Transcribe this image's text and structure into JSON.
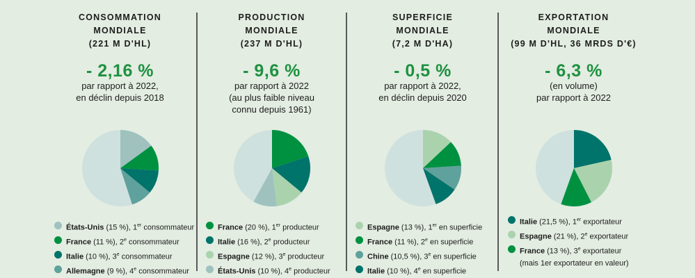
{
  "colors": {
    "background": "#e3ede2",
    "accent": "#1e9140",
    "rest": "#cfe1de"
  },
  "chart_data": [
    {
      "type": "pie",
      "title": [
        "CONSOMMATION",
        "MONDIALE",
        "(221 M D'HL)"
      ],
      "change": "- 2,16 %",
      "subtitle": [
        "par rapport à 2022,",
        "en déclin depuis 2018"
      ],
      "slices": [
        {
          "label": "États-Unis",
          "value": 15,
          "pct_text": "(15 %)",
          "rank": "1",
          "sup": "er",
          "role": "consommateur",
          "color": "#9fc2bf"
        },
        {
          "label": "France",
          "value": 11,
          "pct_text": "(11 %)",
          "rank": "2",
          "sup": "e",
          "role": "consommateur",
          "color": "#009140"
        },
        {
          "label": "Italie",
          "value": 10,
          "pct_text": "(10 %)",
          "rank": "3",
          "sup": "e",
          "role": "consommateur",
          "color": "#00736a"
        },
        {
          "label": "Allemagne",
          "value": 9,
          "pct_text": "(9 %)",
          "rank": "4",
          "sup": "e",
          "role": "consommateur",
          "color": "#5fa19c"
        }
      ]
    },
    {
      "type": "pie",
      "title": [
        "PRODUCTION",
        "MONDIALE",
        "(237 M D'HL)"
      ],
      "change": "- 9,6 %",
      "subtitle": [
        "par rapport à 2022",
        "(au plus faible niveau",
        "connu depuis 1961)"
      ],
      "slices": [
        {
          "label": "France",
          "value": 20,
          "pct_text": "(20 %)",
          "rank": "1",
          "sup": "er",
          "role": "producteur",
          "color": "#009140"
        },
        {
          "label": "Italie",
          "value": 16,
          "pct_text": "(16 %)",
          "rank": "2",
          "sup": "e",
          "role": "producteur",
          "color": "#00736a"
        },
        {
          "label": "Espagne",
          "value": 12,
          "pct_text": "(12 %)",
          "rank": "3",
          "sup": "e",
          "role": "producteur",
          "color": "#aad3ad"
        },
        {
          "label": "États-Unis",
          "value": 10,
          "pct_text": "(10 %)",
          "rank": "4",
          "sup": "e",
          "role": "producteur",
          "color": "#9fc2bf"
        }
      ]
    },
    {
      "type": "pie",
      "title": [
        "SUPERFICIE",
        "MONDIALE",
        "(7,2 M D'HA)"
      ],
      "change": "- 0,5 %",
      "subtitle": [
        "par rapport à 2022,",
        "en déclin depuis 2020"
      ],
      "slices": [
        {
          "label": "Espagne",
          "value": 13,
          "pct_text": "(13 %)",
          "rank": "1",
          "sup": "er",
          "role": "en superficie",
          "color": "#aad3ad"
        },
        {
          "label": "France",
          "value": 11,
          "pct_text": "(11 %)",
          "rank": "2",
          "sup": "e",
          "role": "en superficie",
          "color": "#009140"
        },
        {
          "label": "Chine",
          "value": 10.5,
          "pct_text": "(10,5 %)",
          "rank": "3",
          "sup": "e",
          "role": "en superficie",
          "color": "#5fa19c"
        },
        {
          "label": "Italie",
          "value": 10,
          "pct_text": "(10 %)",
          "rank": "4",
          "sup": "e",
          "role": "en superficie",
          "color": "#00736a"
        }
      ]
    },
    {
      "type": "pie",
      "title": [
        "EXPORTATION",
        "MONDIALE",
        "(99 M D'HL, 36 MRDS D'€)"
      ],
      "change": "- 6,3 %",
      "subtitle": [
        "(en volume)",
        "par rapport à 2022"
      ],
      "slices": [
        {
          "label": "Italie",
          "value": 21.5,
          "pct_text": "(21,5 %)",
          "rank": "1",
          "sup": "er",
          "role": "exportateur",
          "color": "#00736a"
        },
        {
          "label": "Espagne",
          "value": 21,
          "pct_text": "(21 %)",
          "rank": "2",
          "sup": "e",
          "role": "exportateur",
          "color": "#aad3ad"
        },
        {
          "label": "France",
          "value": 13,
          "pct_text": "(13 %)",
          "rank": "3",
          "sup": "e",
          "role": "exportateur",
          "color": "#009140"
        }
      ],
      "note": "(mais 1er exportateur en valeur)"
    }
  ]
}
